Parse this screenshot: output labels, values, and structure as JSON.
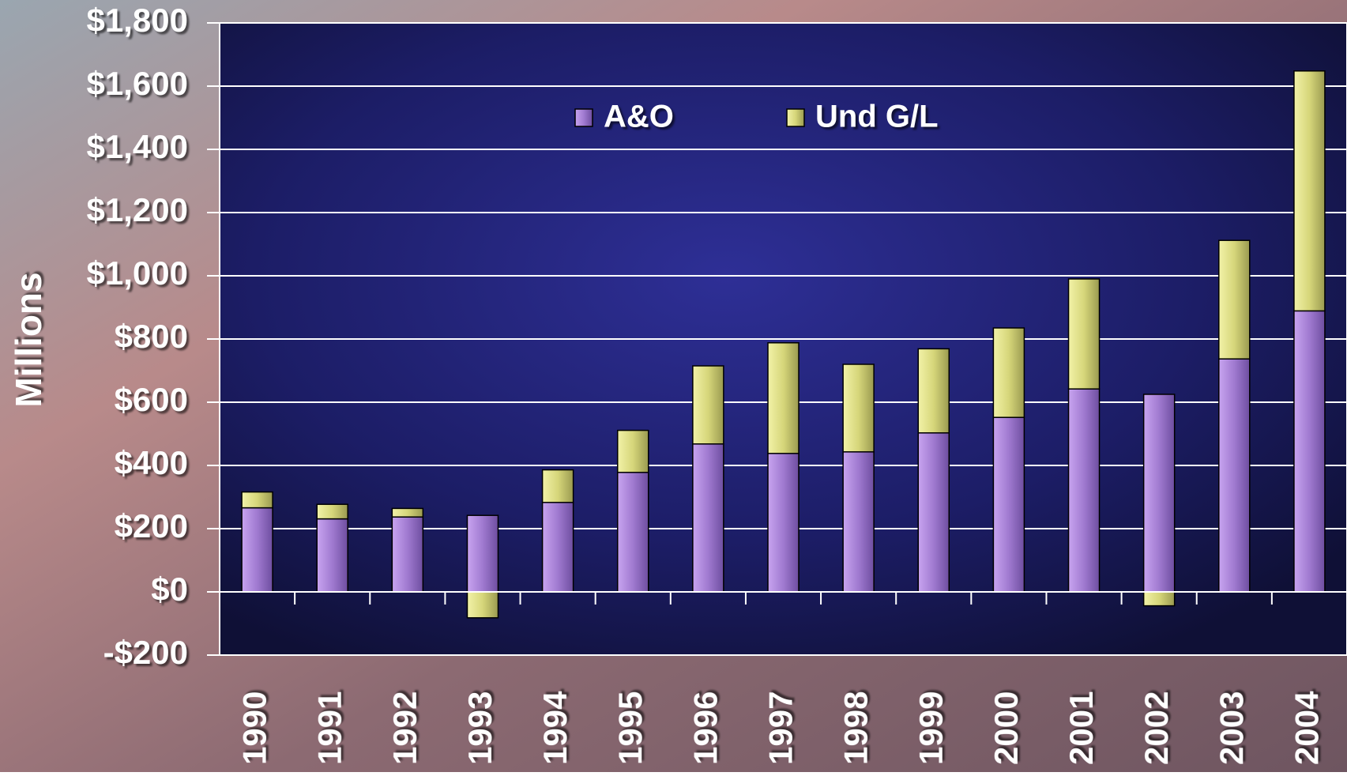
{
  "chart_data": {
    "type": "stacked-bar",
    "y_axis_label": "Millions",
    "categories": [
      "1990",
      "1991",
      "1992",
      "1993",
      "1994",
      "1995",
      "1996",
      "1997",
      "1998",
      "1999",
      "2000",
      "2001",
      "2002",
      "2003",
      "2004"
    ],
    "series": [
      {
        "name": "A&O",
        "color": "#b48ae0",
        "values": [
          266,
          231,
          237,
          242,
          283,
          378,
          468,
          438,
          443,
          503,
          552,
          642,
          625,
          737,
          889
        ]
      },
      {
        "name": "Und G/L",
        "color": "#e4e48a",
        "values": [
          50,
          46,
          27,
          -82,
          103,
          133,
          247,
          350,
          277,
          266,
          283,
          348,
          -44,
          375,
          759
        ]
      }
    ],
    "ylim": [
      -200,
      1800
    ],
    "yticks": [
      {
        "value": -200,
        "label": "-$200"
      },
      {
        "value": 0,
        "label": "$0"
      },
      {
        "value": 200,
        "label": "$200"
      },
      {
        "value": 400,
        "label": "$400"
      },
      {
        "value": 600,
        "label": "$600"
      },
      {
        "value": 800,
        "label": "$800"
      },
      {
        "value": 1000,
        "label": "$1,000"
      },
      {
        "value": 1200,
        "label": "$1,200"
      },
      {
        "value": 1400,
        "label": "$1,400"
      },
      {
        "value": 1600,
        "label": "$1,600"
      },
      {
        "value": 1800,
        "label": "$1,800"
      }
    ],
    "grid": true
  }
}
